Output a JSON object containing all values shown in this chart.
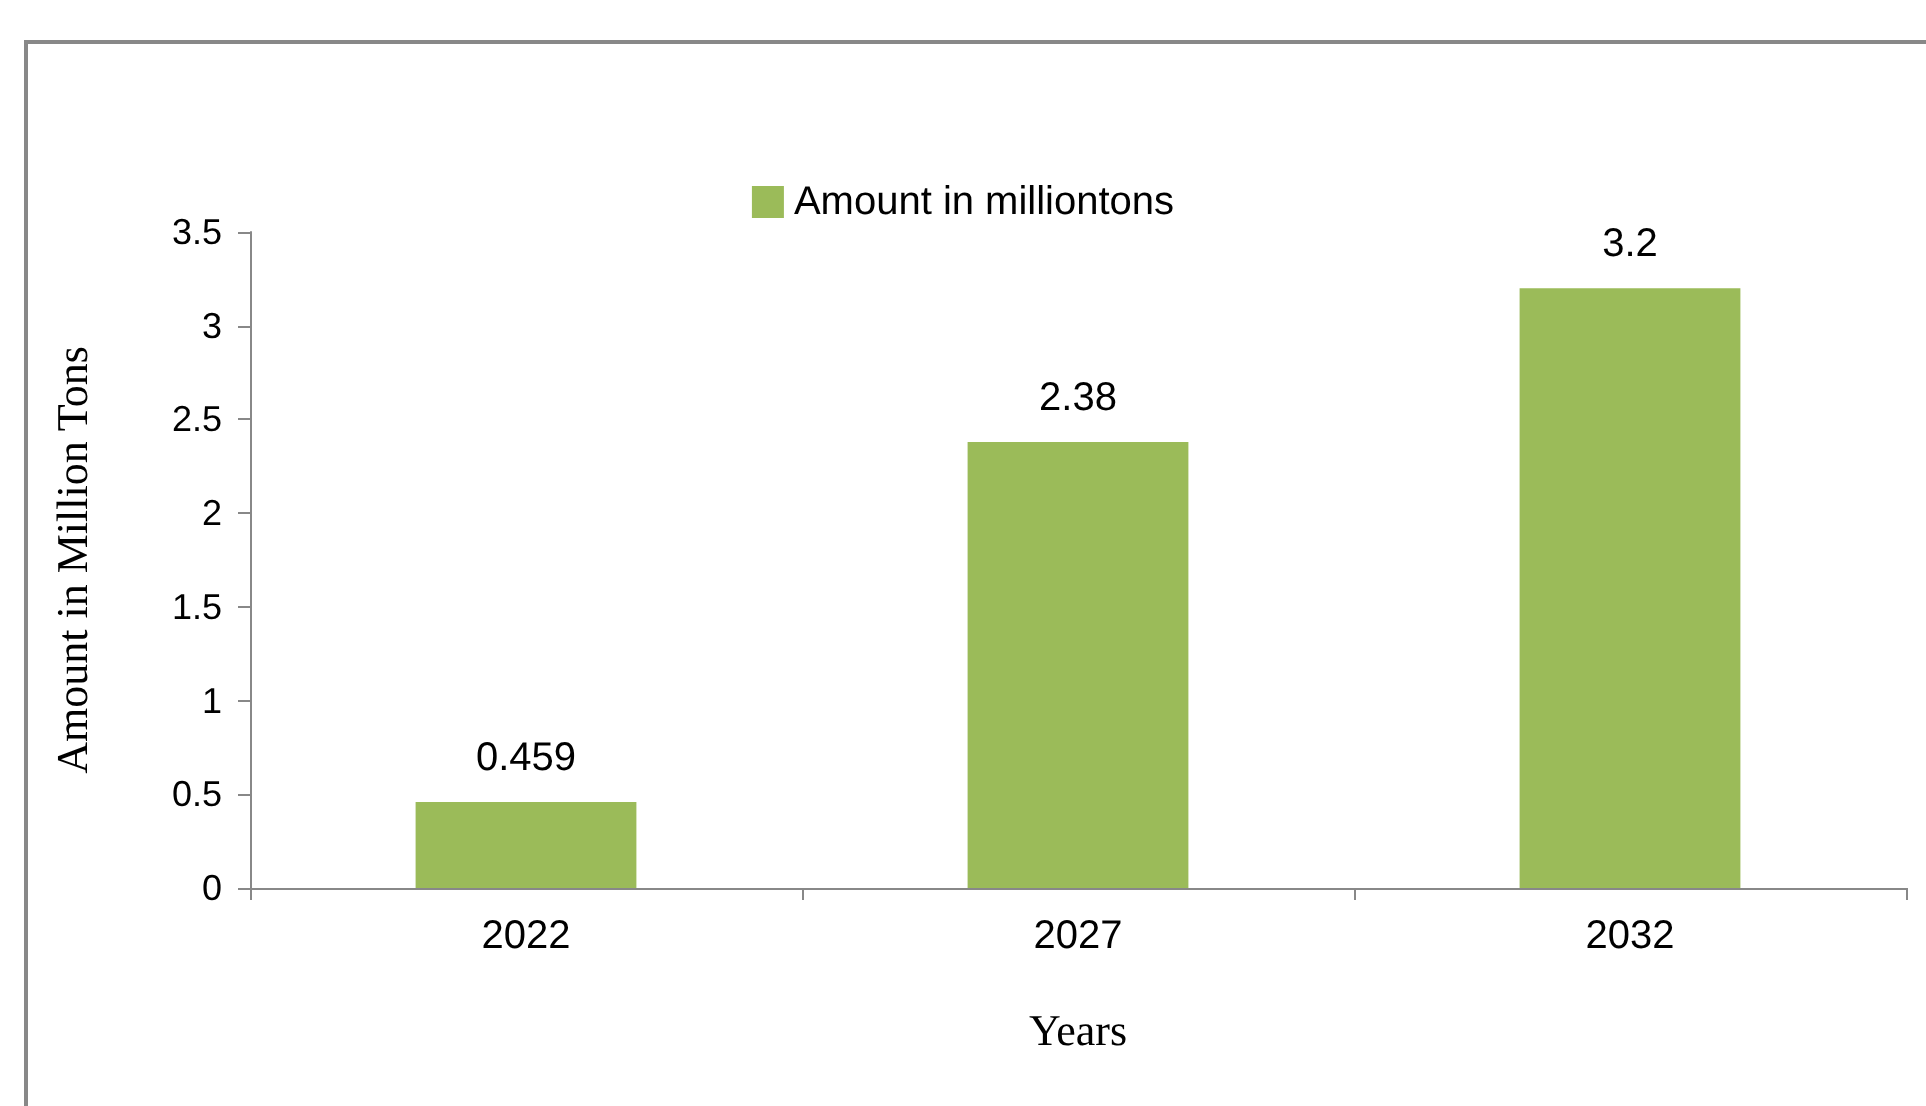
{
  "chart_data": {
    "type": "bar",
    "xlabel": "Years",
    "ylabel": "Amount in Million Tons",
    "categories": [
      "2022",
      "2027",
      "2032"
    ],
    "series": [
      {
        "name": "Amount in milliontons",
        "color": "#9bbb59",
        "values": [
          0.459,
          2.38,
          3.2
        ]
      }
    ],
    "ylim": [
      0,
      3.5
    ],
    "yticks": [
      0,
      0.5,
      1,
      1.5,
      2,
      2.5,
      3,
      3.5
    ],
    "grid": false,
    "legend": "top",
    "data_labels": true
  }
}
